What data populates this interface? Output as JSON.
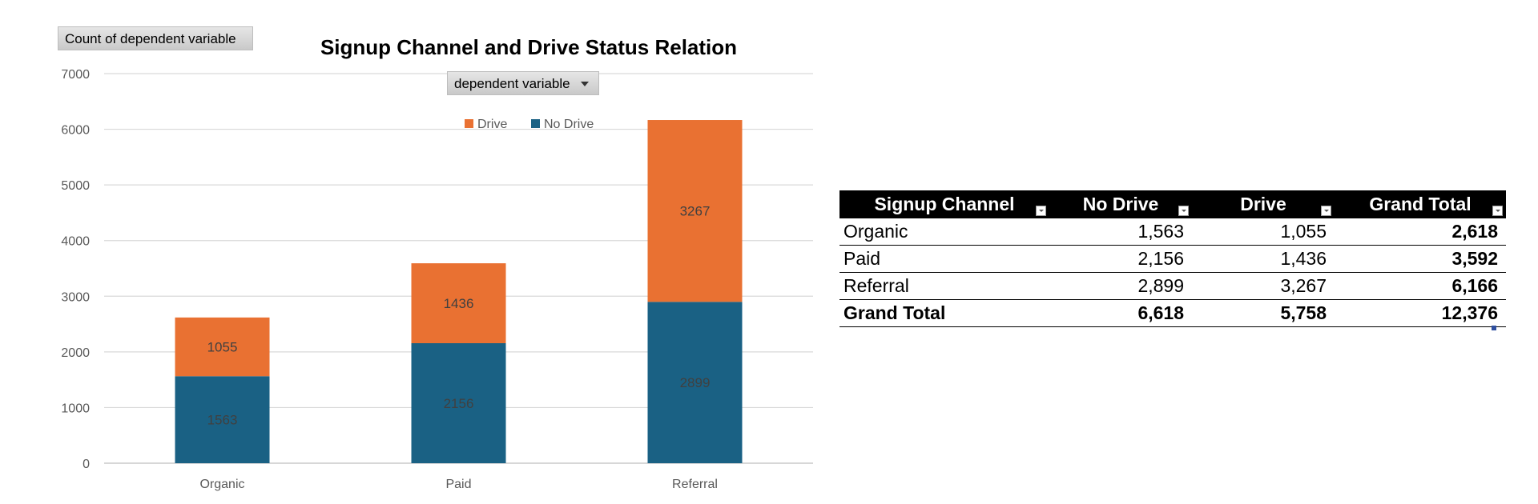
{
  "chart_data": {
    "type": "bar",
    "stacked": true,
    "title": "Signup Channel and Drive Status Relation",
    "xlabel": "",
    "ylabel": "",
    "categories": [
      "Organic",
      "Paid",
      "Referral"
    ],
    "series": [
      {
        "name": "No Drive",
        "values": [
          1563,
          2156,
          2899
        ],
        "color": "#1a6184"
      },
      {
        "name": "Drive",
        "values": [
          1055,
          1436,
          3267
        ],
        "color": "#e97132"
      }
    ],
    "ylim": [
      0,
      7000
    ],
    "yticks": [
      0,
      1000,
      2000,
      3000,
      4000,
      5000,
      6000,
      7000
    ],
    "grid": true,
    "legend": "top-center",
    "legend_order": [
      "Drive",
      "No Drive"
    ]
  },
  "pivot_buttons": {
    "values_field": "Count of dependent variable",
    "column_field": "dependent variable"
  },
  "table": {
    "headers": [
      "Signup Channel",
      "No Drive",
      "Drive",
      "Grand Total"
    ],
    "rows": [
      [
        "Organic",
        "1,563",
        "1,055",
        "2,618"
      ],
      [
        "Paid",
        "2,156",
        "1,436",
        "3,592"
      ],
      [
        "Referral",
        "2,899",
        "3,267",
        "6,166"
      ]
    ],
    "total": [
      "Grand Total",
      "6,618",
      "5,758",
      "12,376"
    ]
  }
}
